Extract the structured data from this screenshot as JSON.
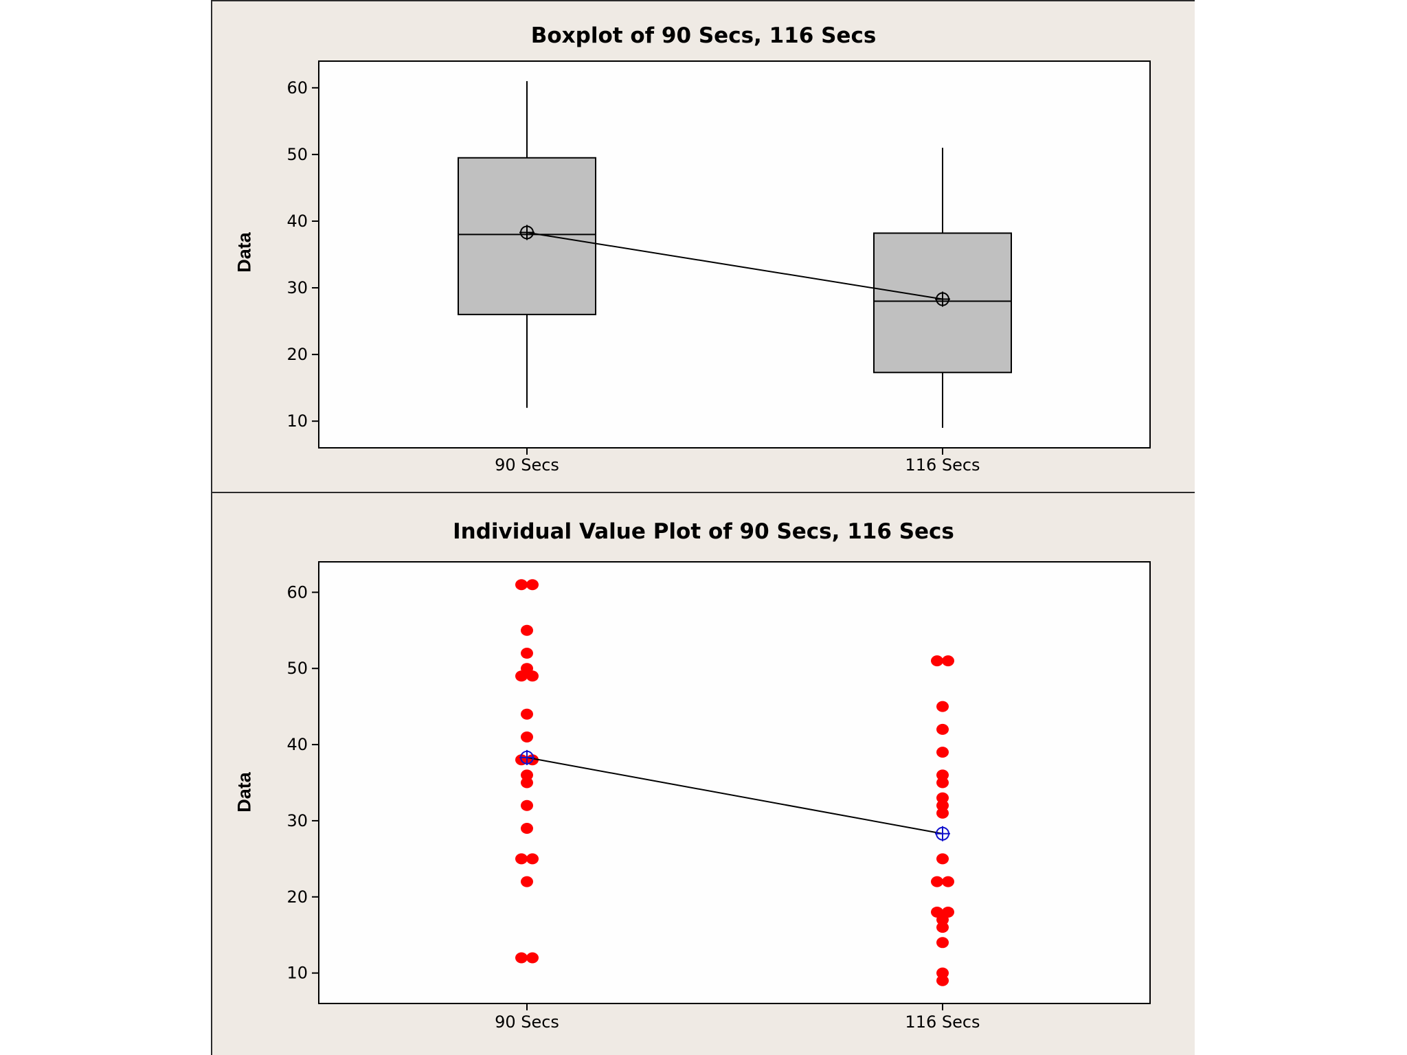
{
  "chart_data": [
    {
      "type": "box",
      "title": "Boxplot of 90 Secs, 116 Secs",
      "ylabel": "Data",
      "xlabel": "",
      "categories": [
        "90 Secs",
        "116 Secs"
      ],
      "yticks": [
        10,
        20,
        30,
        40,
        50,
        60
      ],
      "ylim": [
        6,
        64
      ],
      "boxes": [
        {
          "name": "90 Secs",
          "whisker_low": 12,
          "q1": 26,
          "median": 38,
          "q3": 49.5,
          "whisker_high": 61,
          "mean": 38.3
        },
        {
          "name": "116 Secs",
          "whisker_low": 9,
          "q1": 17.3,
          "median": 28,
          "q3": 38.2,
          "whisker_high": 51,
          "mean": 28.3
        }
      ],
      "mean_connect_line": true,
      "colors": {
        "box_fill": "#c0c0c0",
        "line": "#000000",
        "background": "#fefefe"
      }
    },
    {
      "type": "scatter",
      "title": "Individual Value Plot of 90 Secs, 116 Secs",
      "ylabel": "Data",
      "xlabel": "",
      "categories": [
        "90 Secs",
        "116 Secs"
      ],
      "yticks": [
        10,
        20,
        30,
        40,
        50,
        60
      ],
      "ylim": [
        6,
        64
      ],
      "series": [
        {
          "name": "90 Secs",
          "values": [
            61,
            61,
            55,
            52,
            50,
            49,
            49,
            44,
            41,
            38,
            38,
            36,
            35,
            32,
            29,
            25,
            25,
            22,
            12,
            12
          ],
          "mean": 38.3
        },
        {
          "name": "116 Secs",
          "values": [
            51,
            51,
            45,
            42,
            39,
            36,
            35,
            33,
            32,
            31,
            25,
            22,
            22,
            18,
            18,
            17,
            16,
            14,
            10,
            9
          ],
          "mean": 28.3
        }
      ],
      "mean_connect_line": true,
      "colors": {
        "points": "#ff0000",
        "mean_marker": "#1010cc",
        "line": "#000000",
        "background": "#fefefe"
      }
    }
  ]
}
